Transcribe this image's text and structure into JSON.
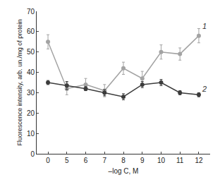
{
  "chart_data": {
    "type": "line",
    "x_label": "–log C, M",
    "y_label": "Fluorescence intensity, arb. un./mg of protein",
    "categories": [
      "0",
      "5",
      "6",
      "7",
      "8",
      "9",
      "10",
      "11",
      "12"
    ],
    "series": [
      {
        "name": "1",
        "color": "#a3a3a3",
        "marker": "circle",
        "values": [
          55,
          32,
          34,
          31,
          42,
          37,
          50,
          49,
          58
        ],
        "errors": [
          3.5,
          3,
          3,
          3,
          3,
          3.5,
          3.5,
          3,
          3.5
        ]
      },
      {
        "name": "2",
        "color": "#3c3c3c",
        "marker": "circle",
        "values": [
          35,
          33.5,
          32,
          30,
          28,
          34,
          35,
          30,
          29
        ],
        "errors": [
          1,
          2,
          1,
          1.5,
          1.5,
          1.5,
          1.5,
          1,
          1
        ]
      }
    ],
    "ylim": [
      0,
      70
    ],
    "yticks": [
      0,
      10,
      20,
      30,
      40,
      50,
      60,
      70
    ],
    "grid": false
  }
}
